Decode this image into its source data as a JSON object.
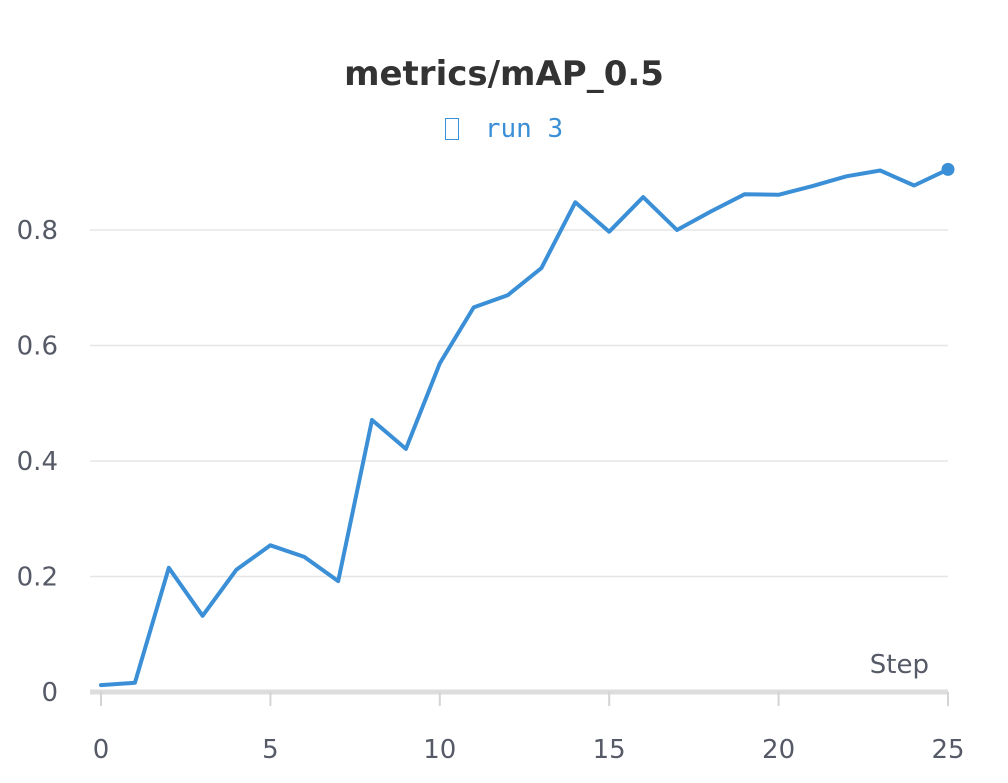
{
  "chart_data": {
    "type": "line",
    "title": "metrics/mAP_0.5",
    "xlabel": "Step",
    "ylabel": "",
    "xlim": [
      0,
      25
    ],
    "ylim": [
      0,
      0.92
    ],
    "x_ticks": [
      0,
      5,
      10,
      15,
      20,
      25
    ],
    "y_ticks": [
      0,
      0.2,
      0.4,
      0.6,
      0.8
    ],
    "y_tick_labels": [
      "0",
      "0.2",
      "0.4",
      "0.6",
      "0.8"
    ],
    "grid": true,
    "legend_position": "top-center",
    "series": [
      {
        "name": "run 3",
        "color": "#3b8fd6",
        "x": [
          0,
          1,
          2,
          3,
          4,
          5,
          6,
          7,
          8,
          9,
          10,
          11,
          12,
          13,
          14,
          15,
          16,
          17,
          18,
          19,
          20,
          21,
          22,
          23,
          24,
          25
        ],
        "values": [
          0.012,
          0.016,
          0.215,
          0.132,
          0.212,
          0.254,
          0.234,
          0.192,
          0.471,
          0.421,
          0.569,
          0.666,
          0.687,
          0.734,
          0.848,
          0.797,
          0.857,
          0.8,
          0.832,
          0.862,
          0.861,
          0.876,
          0.893,
          0.903,
          0.877,
          0.905
        ],
        "end_marker": true
      }
    ]
  }
}
